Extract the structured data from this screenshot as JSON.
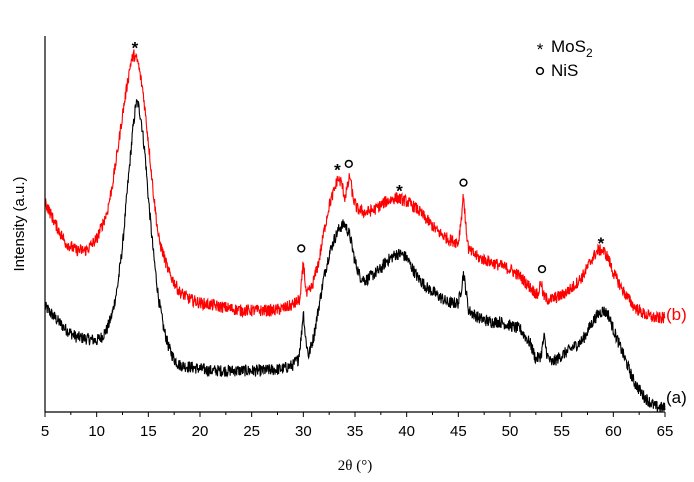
{
  "chart_data": {
    "type": "line",
    "title": "",
    "xlabel": "2θ (°)",
    "ylabel": "Intensity (a.u.)",
    "xlim": [
      5,
      65
    ],
    "ylim": [
      0,
      100
    ],
    "x_ticks": [
      "5",
      "10",
      "15",
      "20",
      "25",
      "30",
      "35",
      "40",
      "45",
      "50",
      "55",
      "60",
      "65"
    ],
    "y_ticks": [],
    "legend": {
      "placement": "top-right",
      "entries": [
        {
          "symbol": "*",
          "text": "MoS",
          "sub": "2"
        },
        {
          "symbol": "o",
          "text": "NiS",
          "sub": ""
        }
      ]
    },
    "series": [
      {
        "name": "(a)",
        "color": "#000000",
        "points": [
          [
            5,
            28
          ],
          [
            6,
            25
          ],
          [
            7,
            22
          ],
          [
            8,
            20
          ],
          [
            9,
            19.5
          ],
          [
            10,
            19
          ],
          [
            10.5,
            20
          ],
          [
            11,
            22
          ],
          [
            11.5,
            26
          ],
          [
            12,
            33
          ],
          [
            12.5,
            44
          ],
          [
            13,
            60
          ],
          [
            13.5,
            75
          ],
          [
            13.8,
            82
          ],
          [
            14,
            82
          ],
          [
            14.3,
            78
          ],
          [
            14.7,
            68
          ],
          [
            15,
            57
          ],
          [
            15.5,
            42
          ],
          [
            16,
            30
          ],
          [
            16.5,
            22
          ],
          [
            17,
            17
          ],
          [
            17.5,
            14
          ],
          [
            18,
            12.5
          ],
          [
            19,
            12
          ],
          [
            20,
            11.5
          ],
          [
            21,
            11
          ],
          [
            22,
            11
          ],
          [
            23,
            11
          ],
          [
            24,
            11
          ],
          [
            25,
            11
          ],
          [
            26,
            11
          ],
          [
            27,
            11.2
          ],
          [
            28,
            11.5
          ],
          [
            29,
            12.5
          ],
          [
            29.5,
            14
          ],
          [
            29.8,
            20
          ],
          [
            30,
            27
          ],
          [
            30.2,
            20
          ],
          [
            30.5,
            15
          ],
          [
            31,
            20
          ],
          [
            31.5,
            28
          ],
          [
            32,
            36
          ],
          [
            32.5,
            42
          ],
          [
            33,
            46
          ],
          [
            33.5,
            49
          ],
          [
            34,
            50
          ],
          [
            34.5,
            47
          ],
          [
            35,
            40
          ],
          [
            35.5,
            36
          ],
          [
            36,
            35
          ],
          [
            36.5,
            36
          ],
          [
            37,
            37
          ],
          [
            37.5,
            38
          ],
          [
            38,
            40
          ],
          [
            38.5,
            41
          ],
          [
            39,
            42
          ],
          [
            39.5,
            42
          ],
          [
            40,
            41
          ],
          [
            41,
            36
          ],
          [
            42,
            33
          ],
          [
            43,
            31
          ],
          [
            44,
            29
          ],
          [
            45,
            29
          ],
          [
            45.3,
            33
          ],
          [
            45.5,
            37
          ],
          [
            45.7,
            33
          ],
          [
            46,
            27
          ],
          [
            47,
            25
          ],
          [
            48,
            24
          ],
          [
            49,
            24
          ],
          [
            50,
            23
          ],
          [
            51,
            22
          ],
          [
            52,
            18
          ],
          [
            52.5,
            14
          ],
          [
            53,
            15
          ],
          [
            53.3,
            20
          ],
          [
            53.6,
            15
          ],
          [
            54,
            13
          ],
          [
            55,
            15
          ],
          [
            56,
            17
          ],
          [
            57,
            19
          ],
          [
            58,
            24
          ],
          [
            58.5,
            26
          ],
          [
            59,
            27
          ],
          [
            59.5,
            26
          ],
          [
            60,
            22
          ],
          [
            61,
            15
          ],
          [
            62,
            8
          ],
          [
            63,
            4
          ],
          [
            64,
            1.5
          ],
          [
            65,
            1
          ]
        ]
      },
      {
        "name": "(b)",
        "color": "#ff0000",
        "points": [
          [
            5,
            56
          ],
          [
            6,
            50
          ],
          [
            7,
            45
          ],
          [
            8,
            43
          ],
          [
            9,
            43
          ],
          [
            10,
            46
          ],
          [
            11,
            53
          ],
          [
            11.5,
            60
          ],
          [
            12,
            69
          ],
          [
            12.5,
            79
          ],
          [
            13,
            88
          ],
          [
            13.3,
            93
          ],
          [
            13.6,
            95
          ],
          [
            14,
            93
          ],
          [
            14.5,
            85
          ],
          [
            15,
            72
          ],
          [
            15.5,
            58
          ],
          [
            16,
            46
          ],
          [
            17,
            37
          ],
          [
            18,
            32
          ],
          [
            19,
            30
          ],
          [
            20,
            29
          ],
          [
            21,
            28.5
          ],
          [
            22,
            28
          ],
          [
            23,
            27.5
          ],
          [
            24,
            27
          ],
          [
            25,
            27
          ],
          [
            26,
            27
          ],
          [
            27,
            27
          ],
          [
            28,
            27.5
          ],
          [
            29,
            28.5
          ],
          [
            29.7,
            30
          ],
          [
            30,
            40
          ],
          [
            30.3,
            31
          ],
          [
            30.8,
            33
          ],
          [
            31.5,
            40
          ],
          [
            32,
            48
          ],
          [
            32.5,
            55
          ],
          [
            33,
            59
          ],
          [
            33.3,
            62
          ],
          [
            33.7,
            61
          ],
          [
            34,
            57
          ],
          [
            34.3,
            60
          ],
          [
            34.5,
            63
          ],
          [
            34.8,
            57
          ],
          [
            35.2,
            54
          ],
          [
            36,
            53
          ],
          [
            37,
            54
          ],
          [
            38,
            56
          ],
          [
            39,
            57
          ],
          [
            40,
            56
          ],
          [
            41,
            54
          ],
          [
            42,
            51
          ],
          [
            43,
            48
          ],
          [
            44,
            46
          ],
          [
            45,
            45
          ],
          [
            45.3,
            52
          ],
          [
            45.5,
            58
          ],
          [
            45.7,
            50
          ],
          [
            46,
            43
          ],
          [
            47,
            41
          ],
          [
            48,
            40
          ],
          [
            49,
            39
          ],
          [
            50,
            38
          ],
          [
            51,
            36
          ],
          [
            52,
            33
          ],
          [
            52.7,
            31
          ],
          [
            53,
            35
          ],
          [
            53.2,
            31
          ],
          [
            53.6,
            30
          ],
          [
            54,
            30
          ],
          [
            55,
            31
          ],
          [
            56,
            33
          ],
          [
            57,
            36
          ],
          [
            58,
            41
          ],
          [
            58.5,
            43
          ],
          [
            59,
            43
          ],
          [
            59.5,
            41
          ],
          [
            60,
            37
          ],
          [
            61,
            32
          ],
          [
            62,
            28
          ],
          [
            63,
            26
          ],
          [
            64,
            25
          ],
          [
            65,
            25
          ]
        ]
      }
    ],
    "annotations": [
      {
        "symbol": "*",
        "x": 13.7,
        "y": 97.5
      },
      {
        "symbol": "*",
        "x": 33.3,
        "y": 65
      },
      {
        "symbol": "o",
        "x": 34.4,
        "y": 66
      },
      {
        "symbol": "*",
        "x": 39.3,
        "y": 59.5
      },
      {
        "symbol": "o",
        "x": 29.8,
        "y": 43.5
      },
      {
        "symbol": "o",
        "x": 45.5,
        "y": 61
      },
      {
        "symbol": "o",
        "x": 53.1,
        "y": 38
      },
      {
        "symbol": "*",
        "x": 58.8,
        "y": 45.5
      }
    ],
    "series_labels": [
      {
        "text": "(b)",
        "color": "#ff0000",
        "y": 26
      },
      {
        "text": "(a)",
        "color": "#000000",
        "y": 4
      }
    ],
    "grid": false
  }
}
